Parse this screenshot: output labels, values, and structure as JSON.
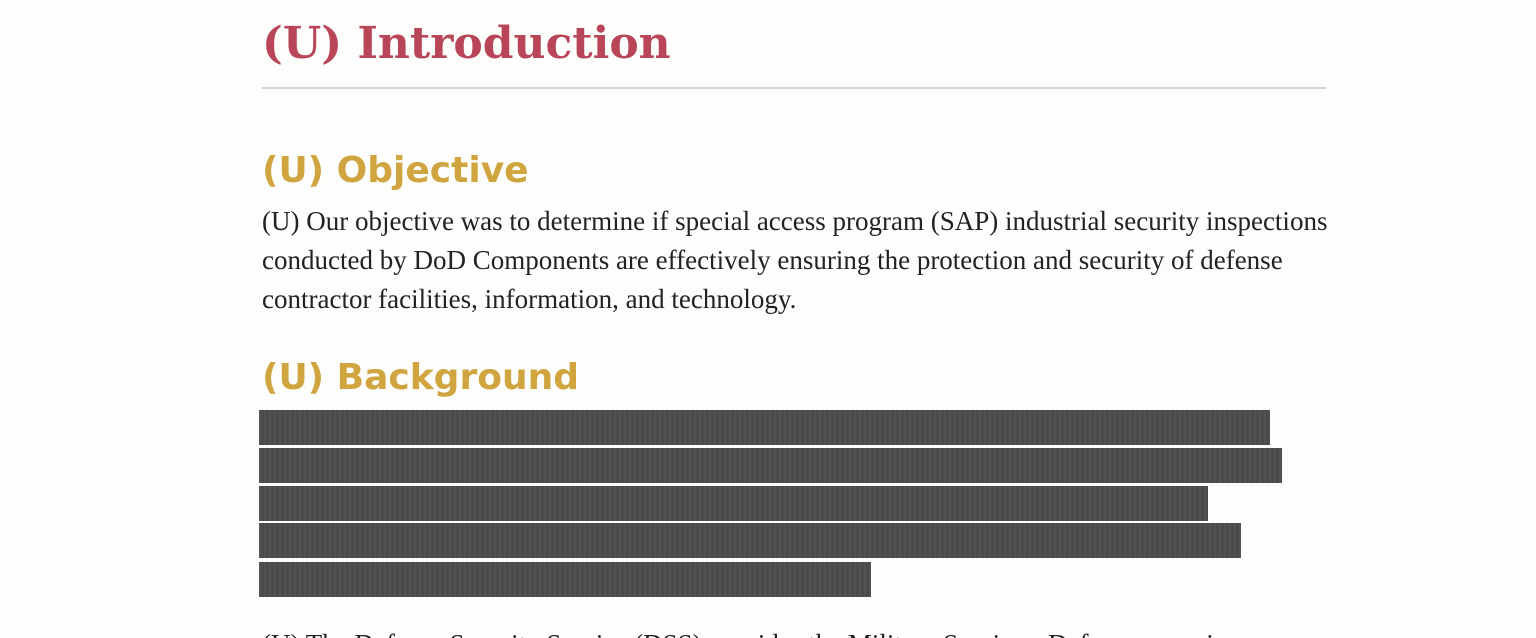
{
  "document": {
    "title": "(U) Introduction",
    "objective": {
      "heading": "(U) Objective",
      "body": "(U) Our objective was to determine if special access program (SAP) industrial security inspections conducted by DoD Components are effectively ensuring the protection and security of defense contractor facilities, information, and technology."
    },
    "background": {
      "heading": "(U) Background",
      "redacted_lines": 5,
      "next_paragraph_fragment": "(U) The Defense Security Service (DSS) provides the Military Services, Defense agencies"
    }
  }
}
